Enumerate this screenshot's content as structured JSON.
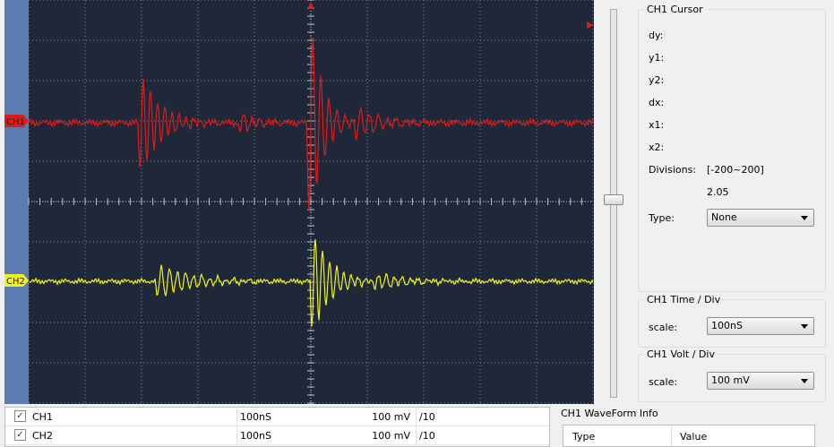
{
  "scope": {
    "markers": [
      "CH1",
      "CH2"
    ]
  },
  "cursor": {
    "title": "CH1 Cursor",
    "fields": [
      "dy:",
      "y1:",
      "y2:",
      "dx:",
      "x1:",
      "x2:"
    ],
    "divisions_label": "Divisions:",
    "divisions_range": "[-200~200]",
    "divisions_value": 2.05,
    "type_label": "Type:",
    "type_value": "None"
  },
  "time_div": {
    "title": "CH1 Time / Div",
    "label": "scale:",
    "value": "100nS"
  },
  "volt_div": {
    "title": "CH1 Volt / Div",
    "label": "scale:",
    "value": "100 mV"
  },
  "channels": [
    {
      "name": "CH1",
      "time": "100nS",
      "volt": "100 mV",
      "probe": "/10"
    },
    {
      "name": "CH2",
      "time": "100nS",
      "volt": "100 mV",
      "probe": "/10"
    }
  ],
  "waveform_info": {
    "title": "CH1 WaveForm Info",
    "columns": [
      "Type",
      "Value"
    ]
  }
}
